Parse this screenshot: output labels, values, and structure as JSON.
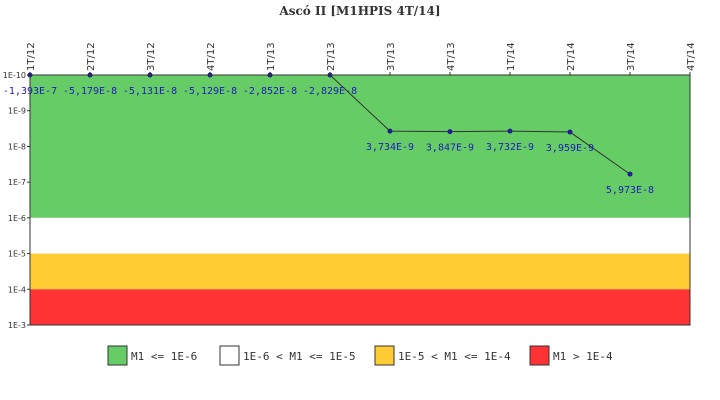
{
  "chart_data": {
    "type": "line",
    "title": "Ascó II [M1HPIS 4T/14]",
    "xlabel": "",
    "ylabel": "",
    "y_scale": "log",
    "y_inverted": true,
    "y_ticks": [
      "1E-10",
      "1E-9",
      "1E-8",
      "1E-7",
      "1E-6",
      "1E-5",
      "1E-4",
      "1E-3"
    ],
    "ylim": [
      1e-10,
      0.001
    ],
    "categories": [
      "1T/12",
      "2T/12",
      "3T/12",
      "4T/12",
      "1T/13",
      "2T/13",
      "3T/13",
      "4T/13",
      "1T/14",
      "2T/14",
      "3T/14",
      "4T/14"
    ],
    "series": [
      {
        "values": [
          -1.393e-07,
          -5.179e-08,
          -5.131e-08,
          -5.129e-08,
          -2.852e-08,
          -2.829e-08,
          3.734e-09,
          3.847e-09,
          3.732e-09,
          3.959e-09,
          5.973e-08,
          null
        ],
        "labels": [
          "-1,393E-7",
          "-5,179E-8",
          "-5,131E-8",
          "-5,129E-8",
          "-2,852E-8",
          "-2,829E-8",
          "3,734E-9",
          "3,847E-9",
          "3,732E-9",
          "3,959E-9",
          "5,973E-8",
          ""
        ]
      }
    ],
    "bands": [
      {
        "from": 1e-10,
        "to": 1e-06,
        "color": "#66cc66",
        "label": "M1 <= 1E-6"
      },
      {
        "from": 1e-06,
        "to": 1e-05,
        "color": "#ffffff",
        "label": "1E-6 < M1 <= 1E-5"
      },
      {
        "from": 1e-05,
        "to": 0.0001,
        "color": "#ffcc33",
        "label": "1E-5 < M1 <= 1E-4"
      },
      {
        "from": 0.0001,
        "to": 0.001,
        "color": "#ff3333",
        "label": "M1 > 1E-4"
      }
    ],
    "line_color": "#333333",
    "marker_color": "#1f1f8f",
    "label_color": "#1f1fb4",
    "legend_position": "bottom",
    "grid": false
  }
}
